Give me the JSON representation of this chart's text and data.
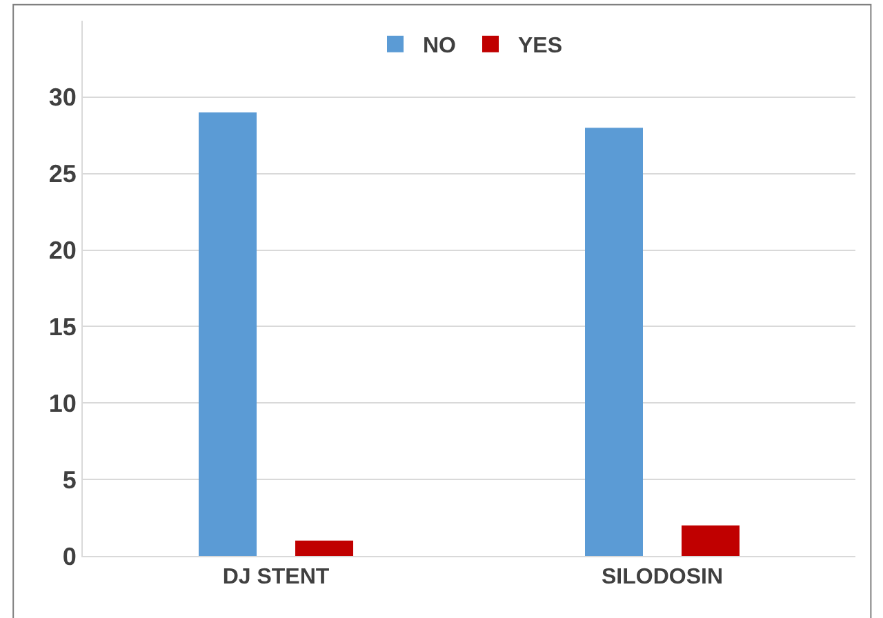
{
  "chart_data": {
    "type": "bar",
    "categories": [
      "DJ STENT",
      "SILODOSIN"
    ],
    "series": [
      {
        "name": "NO",
        "color": "#5b9bd5",
        "values": [
          29,
          28
        ]
      },
      {
        "name": "YES",
        "color": "#c00000",
        "values": [
          1,
          2
        ]
      }
    ],
    "ylim": [
      0,
      35
    ],
    "yticks": [
      0,
      5,
      10,
      15,
      20,
      25,
      30
    ],
    "grid": "y",
    "legend": "top"
  }
}
